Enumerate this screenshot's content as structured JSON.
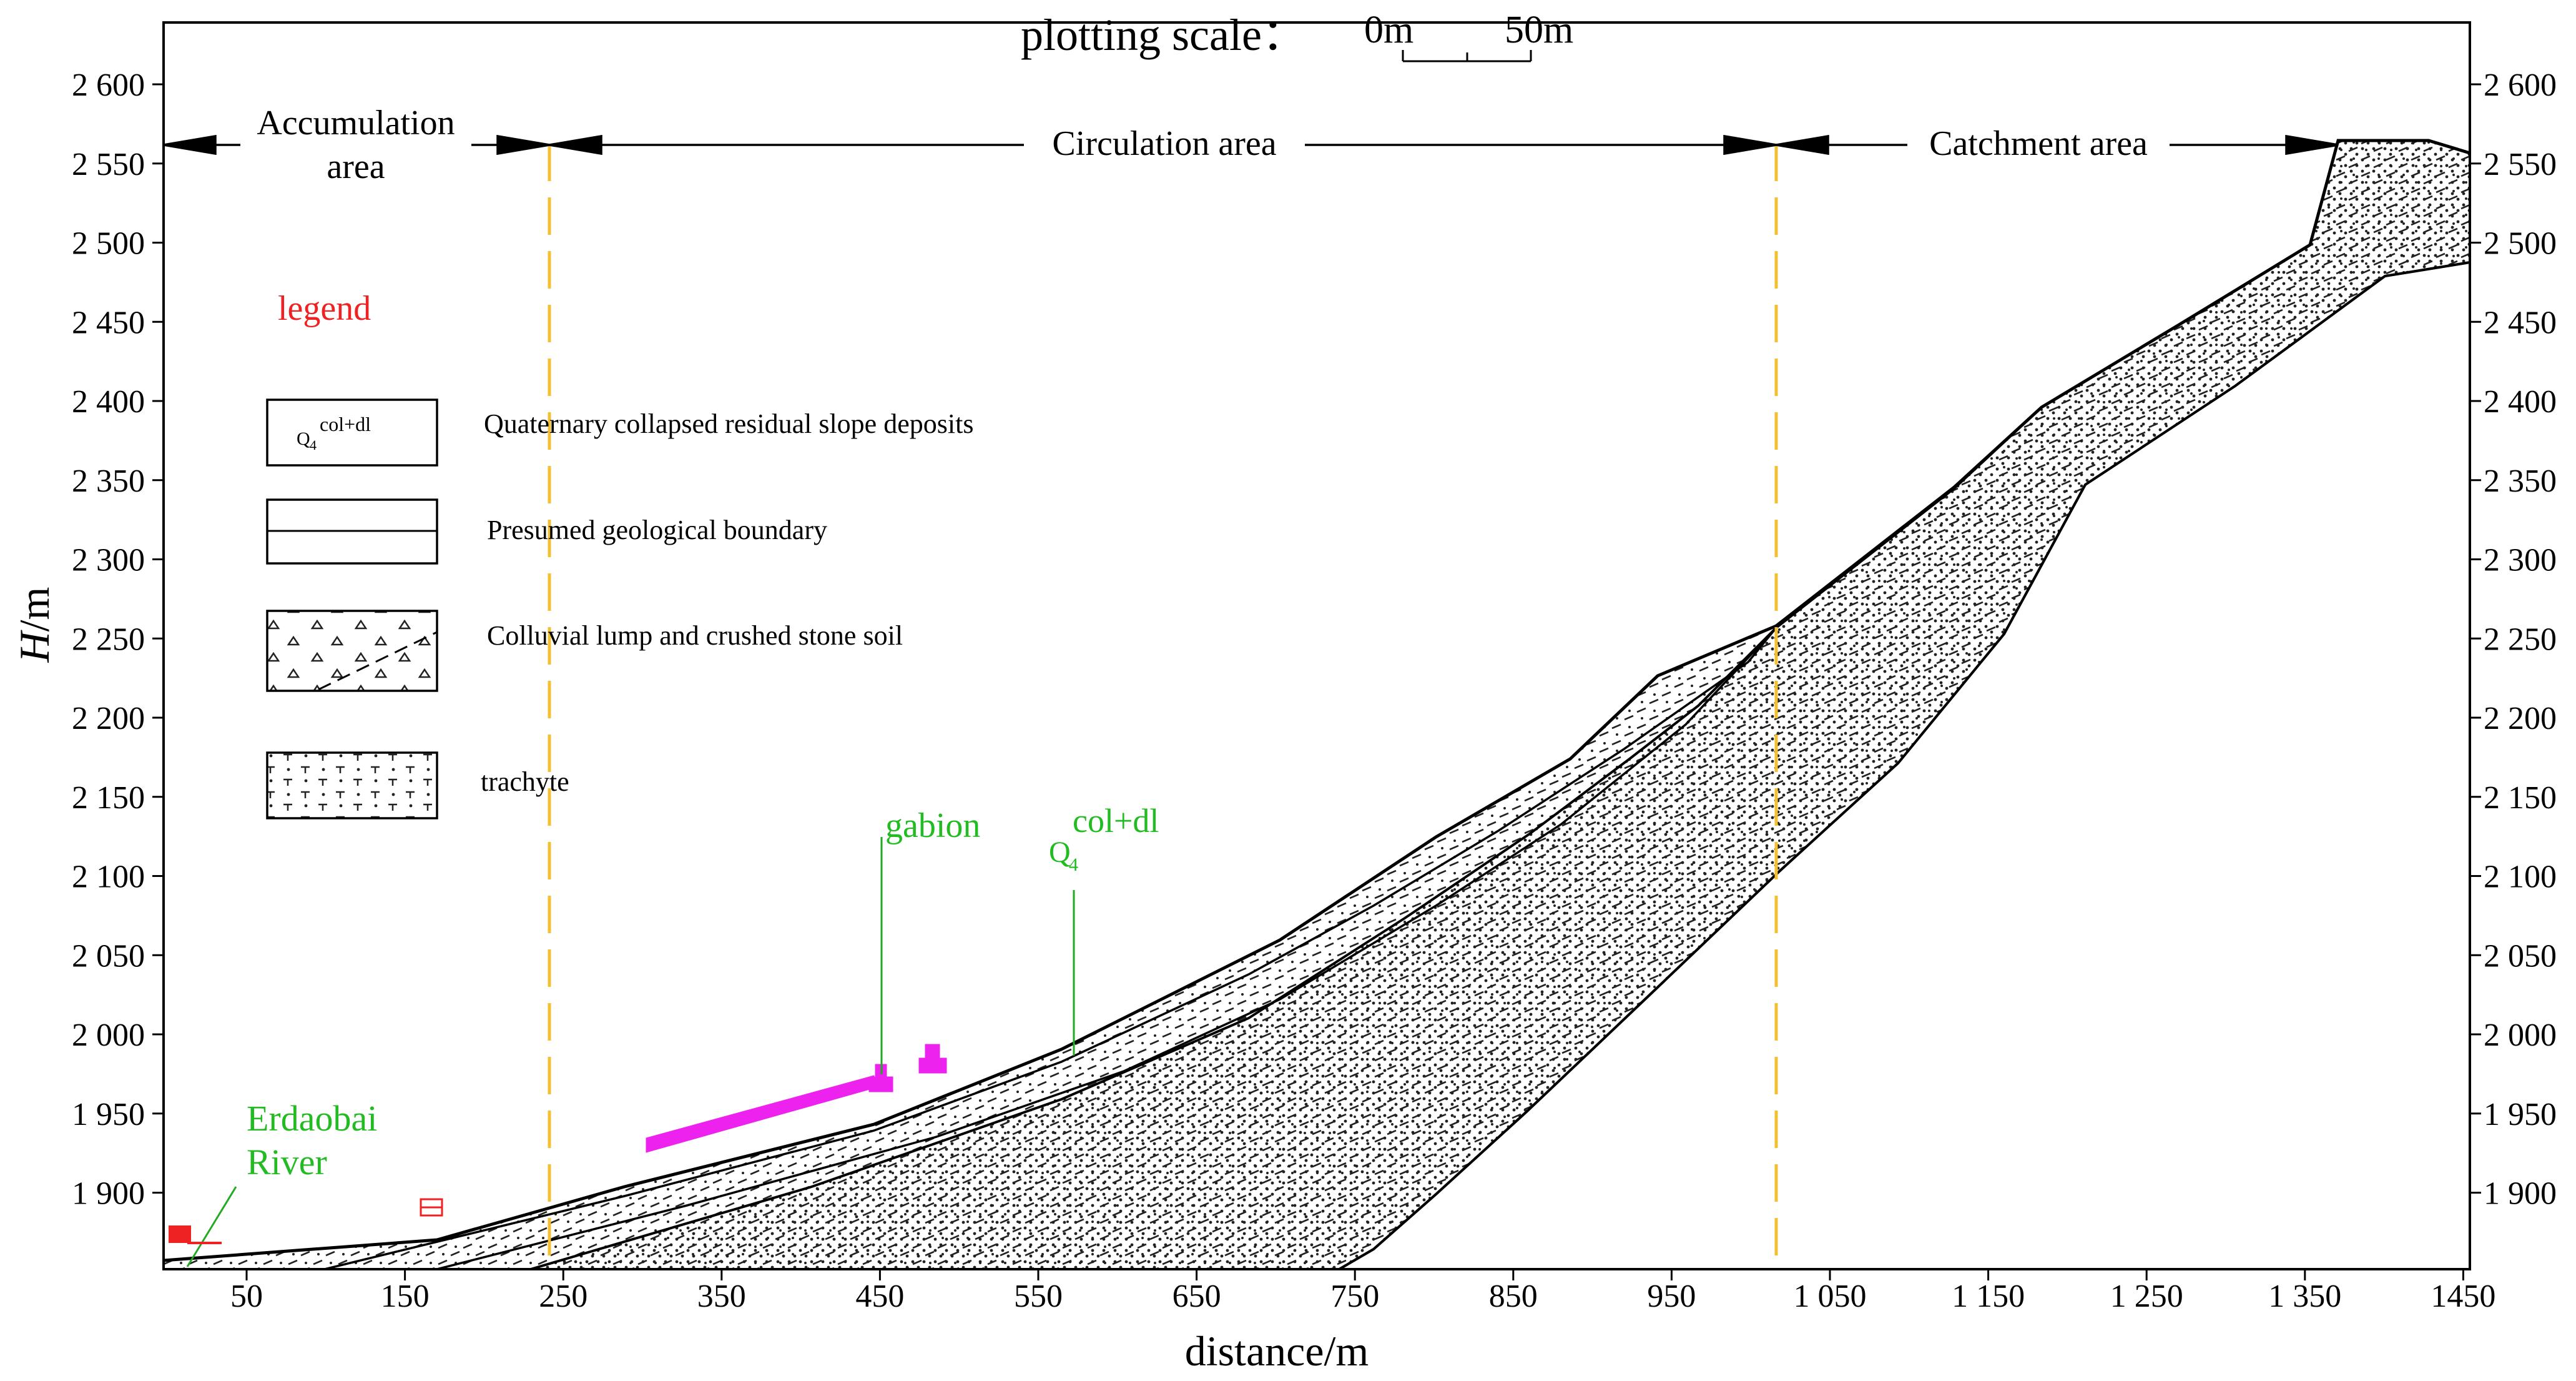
{
  "title": {
    "scale_label": "plotting scale：",
    "scale_start": "0m",
    "scale_end": "50m"
  },
  "axes": {
    "ylabel_italic": "H",
    "ylabel_unit": "/m",
    "xlabel": "distance/m",
    "y_ticks": [
      "2 600",
      "2 550",
      "2 500",
      "2 450",
      "2 400",
      "2 350",
      "2 300",
      "2 250",
      "2 200",
      "2 150",
      "2 100",
      "2 050",
      "2 000",
      "1 950",
      "1 900"
    ],
    "x_ticks": [
      "50",
      "150",
      "250",
      "350",
      "450",
      "550",
      "650",
      "750",
      "850",
      "950",
      "1 050",
      "1 150",
      "1 250",
      "1 350",
      "1450"
    ]
  },
  "zones": {
    "accumulation_line1": "Accumulation",
    "accumulation_line2": "area",
    "circulation": "Circulation area",
    "catchment": "Catchment area"
  },
  "legend": {
    "title": "legend",
    "symbol_q": "Q",
    "symbol_sub": "4",
    "symbol_sup": "col+dl",
    "items": [
      "Quaternary collapsed residual slope deposits",
      "Presumed geological boundary",
      "Colluvial lump and crushed stone soil",
      "trachyte"
    ]
  },
  "annotations": {
    "gabion": "gabion",
    "q_base": "Q",
    "q_sub": "4",
    "q_sup": "col+dl",
    "river_line1": "Erdaobai",
    "river_line2": "River"
  },
  "colors": {
    "zone_divider": "#f2c030",
    "gabion": "#ee22ee",
    "green_label": "#22bb22",
    "red_marker": "#ee2222",
    "legend_title": "#ee2222"
  }
}
